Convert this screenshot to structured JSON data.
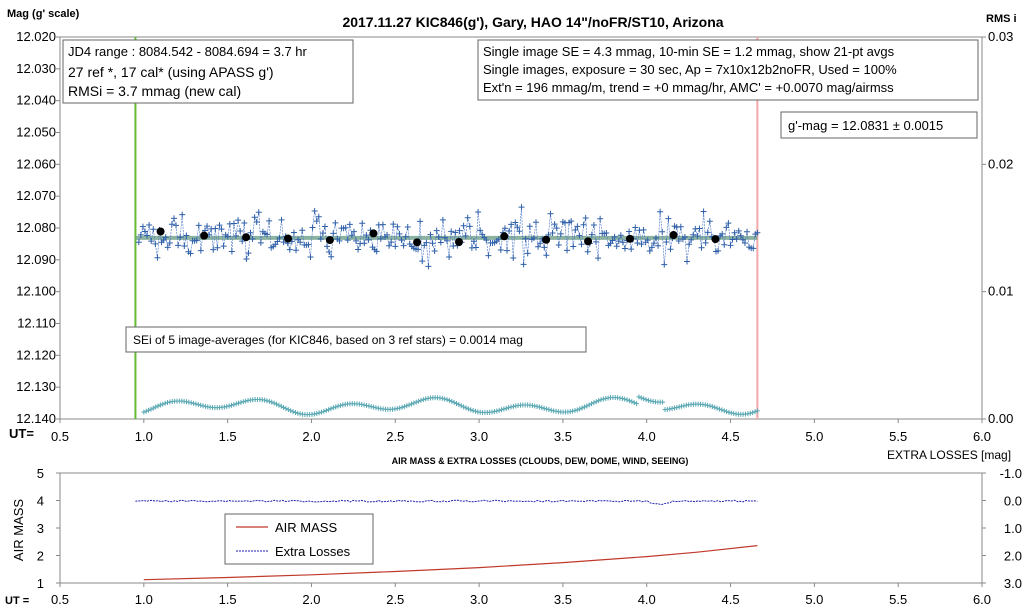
{
  "chart_data": [
    {
      "type": "scatter",
      "title": "2017.11.27  KIC846(g'),  Gary, HAO 14\"/noFR/ST10,  Arizona",
      "ylabel": "Mag (g' scale)",
      "y2label": "RMS i",
      "xlabel": "UT=",
      "xlim": [
        0.5,
        6.0
      ],
      "ylim": [
        12.14,
        12.02
      ],
      "y2lim": [
        0.0,
        0.03
      ],
      "x_ticks": [
        "0.5",
        "1.0",
        "1.5",
        "2.0",
        "2.5",
        "3.0",
        "3.5",
        "4.0",
        "4.5",
        "5.0",
        "5.5",
        "6.0"
      ],
      "y_ticks": [
        "12.020",
        "12.030",
        "12.040",
        "12.050",
        "12.060",
        "12.070",
        "12.080",
        "12.090",
        "12.100",
        "12.110",
        "12.120",
        "12.130",
        "12.140"
      ],
      "y2_ticks": [
        "0.03",
        "0.02",
        "0.01",
        "0.00"
      ],
      "annotations": {
        "box1": [
          "JD4 range : 8084.542 - 8084.694 = 3.7  hr",
          "27 ref *, 17 cal* (using APASS g')",
          "RMSi = 3.7 mmag (new cal)"
        ],
        "box2": [
          "Single image SE = 4.3 mmag, 10-min SE = 1.2 mmag, show  21-pt avgs",
          "Single images, exposure = 30 sec, Ap = 7x10x12b2noFR,  Used = 100%",
          "Ext'n = 196 mmag/m, trend =  +0 mmag/hr, AMC' = +0.0070 mag/airmss"
        ],
        "box3": "g'-mag = 12.0831 ± 0.0015",
        "box4": "SEi of 5 image-averages (for KIC846, based on 3 ref stars) = 0.0014  mag"
      },
      "fit_level": 12.0831,
      "vlines": [
        {
          "x": 0.95,
          "color": "#66bb33"
        },
        {
          "x": 4.66,
          "color": "#f4a8a8"
        }
      ],
      "averages": {
        "x": [
          1.1,
          1.36,
          1.61,
          1.86,
          2.11,
          2.37,
          2.63,
          2.88,
          3.15,
          3.4,
          3.65,
          3.9,
          4.16,
          4.41
        ],
        "y": [
          12.0811,
          12.0824,
          12.0829,
          12.0833,
          12.0838,
          12.0817,
          12.0845,
          12.0844,
          12.0826,
          12.0837,
          12.0842,
          12.0834,
          12.0822,
          12.0835
        ]
      },
      "series": [
        {
          "name": "",
          "x_start": 0.97,
          "x_end": 4.66,
          "count": 300,
          "mean": 12.0831,
          "scatter": 0.0043
        },
        {
          "name": "",
          "x_start": 1.0,
          "x_end": 4.66,
          "count": 260,
          "mean": 0.001
        }
      ]
    },
    {
      "type": "line",
      "title": "AIR MASS & EXTRA LOSSES (CLOUDS, DEW, DOME, WIND, SEEING)",
      "ylabel": "AIR MASS",
      "y2label": "EXTRA LOSSES [mag]",
      "xlabel": "UT =",
      "xlim": [
        0.5,
        6.0
      ],
      "ylim": [
        1,
        5
      ],
      "y2lim": [
        3.0,
        -1.0
      ],
      "x_ticks": [
        "0.5",
        "1.0",
        "1.5",
        "2.0",
        "2.5",
        "3.0",
        "3.5",
        "4.0",
        "4.5",
        "5.0",
        "5.5",
        "6.0"
      ],
      "y_ticks": [
        "5",
        "4",
        "3",
        "2",
        "1"
      ],
      "y2_ticks": [
        "-1.0",
        "0.0",
        "1.0",
        "2.0",
        "3.0"
      ],
      "legend": "left-center",
      "series": [
        {
          "name": "AIR MASS",
          "color": "#c0392b",
          "x": [
            1.0,
            1.5,
            2.0,
            2.5,
            3.0,
            3.5,
            4.0,
            4.3,
            4.66
          ],
          "y": [
            1.12,
            1.2,
            1.3,
            1.42,
            1.56,
            1.74,
            1.96,
            2.12,
            2.36
          ]
        },
        {
          "name": "Extra Losses",
          "color": "#1f1fb0",
          "x_start": 0.95,
          "x_end": 4.66,
          "mean": 0.02,
          "dip": {
            "x": 4.08,
            "depth": 0.15
          }
        }
      ]
    }
  ]
}
